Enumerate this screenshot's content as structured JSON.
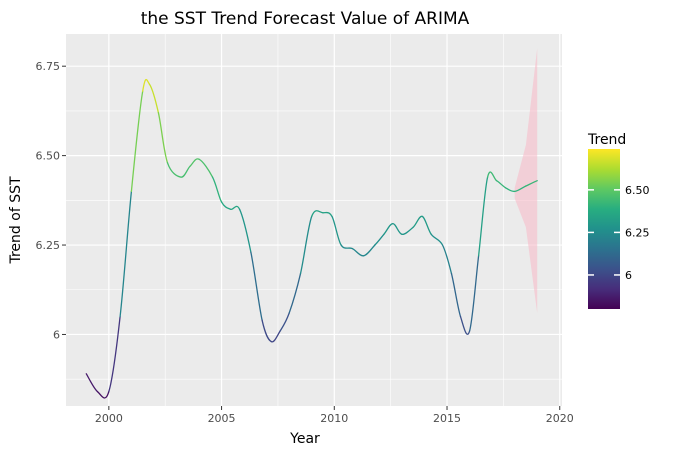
{
  "chart_data": {
    "type": "line",
    "title": "the SST Trend Forecast Value of ARIMA",
    "xlabel": "Year",
    "ylabel": "Trend of SST",
    "xlim": [
      1998.1,
      2020.1
    ],
    "ylim": [
      5.8,
      6.84
    ],
    "x_ticks": [
      2000,
      2005,
      2010,
      2015,
      2020
    ],
    "y_ticks": [
      6.0,
      6.25,
      6.5,
      6.75
    ],
    "y_tick_labels": [
      "6",
      "6.25",
      "6.50",
      "6.75"
    ],
    "grid": true,
    "legend": {
      "title": "Trend",
      "placement": "right",
      "colormap": "viridis",
      "range": [
        5.8,
        6.74
      ],
      "ticks": [
        6.0,
        6.25,
        6.5
      ],
      "tick_labels": [
        "6",
        "6.25",
        "6.50"
      ]
    },
    "x": [
      1999.0,
      1999.5,
      2000.0,
      2000.5,
      2001.0,
      2001.5,
      2001.8,
      2002.2,
      2002.6,
      2003.2,
      2003.6,
      2004.0,
      2004.6,
      2005.0,
      2005.4,
      2005.8,
      2006.3,
      2006.8,
      2007.2,
      2007.6,
      2008.0,
      2008.5,
      2009.0,
      2009.5,
      2009.9,
      2010.3,
      2010.8,
      2011.3,
      2011.8,
      2012.2,
      2012.6,
      2013.0,
      2013.5,
      2013.9,
      2014.3,
      2014.8,
      2015.2,
      2015.6,
      2016.0,
      2016.4,
      2016.8,
      2017.2,
      2017.6,
      2018.0
    ],
    "values": [
      5.89,
      5.84,
      5.84,
      6.05,
      6.4,
      6.68,
      6.7,
      6.62,
      6.48,
      6.44,
      6.47,
      6.49,
      6.44,
      6.37,
      6.35,
      6.35,
      6.23,
      6.04,
      5.98,
      6.01,
      6.06,
      6.17,
      6.33,
      6.34,
      6.33,
      6.25,
      6.24,
      6.22,
      6.25,
      6.28,
      6.31,
      6.28,
      6.3,
      6.33,
      6.28,
      6.25,
      6.17,
      6.05,
      6.01,
      6.22,
      6.44,
      6.43,
      6.41,
      6.4
    ],
    "forecast": {
      "color": "#f8b8c6",
      "x": [
        2018.0,
        2018.5,
        2019.0
      ],
      "mean": [
        6.4,
        6.415,
        6.43
      ],
      "lower": [
        6.38,
        6.3,
        6.06
      ],
      "upper": [
        6.41,
        6.53,
        6.8
      ]
    }
  }
}
